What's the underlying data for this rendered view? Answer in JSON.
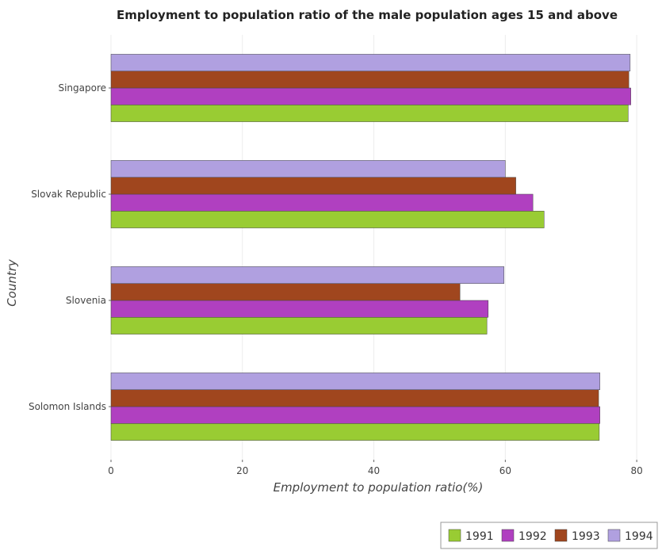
{
  "chart_data": {
    "type": "bar",
    "orientation": "horizontal",
    "title": "Employment to population ratio of the male population ages 15 and above",
    "xlabel": "Employment to population ratio(%)",
    "ylabel": "Country",
    "xlim": [
      0,
      83
    ],
    "xticks": [
      0,
      20,
      40,
      60,
      80
    ],
    "grid": true,
    "legend_position": "bottom-right",
    "categories": [
      "Singapore",
      "Slovak Republic",
      "Slovenia",
      "Solomon Islands"
    ],
    "series": [
      {
        "name": "1991",
        "color": "#99cc33",
        "values": [
          78.7,
          65.9,
          57.2,
          74.3
        ]
      },
      {
        "name": "1992",
        "color": "#b040c0",
        "values": [
          79.1,
          64.2,
          57.4,
          74.4
        ]
      },
      {
        "name": "1993",
        "color": "#a0461e",
        "values": [
          78.8,
          61.6,
          53.1,
          74.2
        ]
      },
      {
        "name": "1994",
        "color": "#b0a0e0",
        "values": [
          79.0,
          60.0,
          59.8,
          74.4
        ]
      }
    ]
  }
}
